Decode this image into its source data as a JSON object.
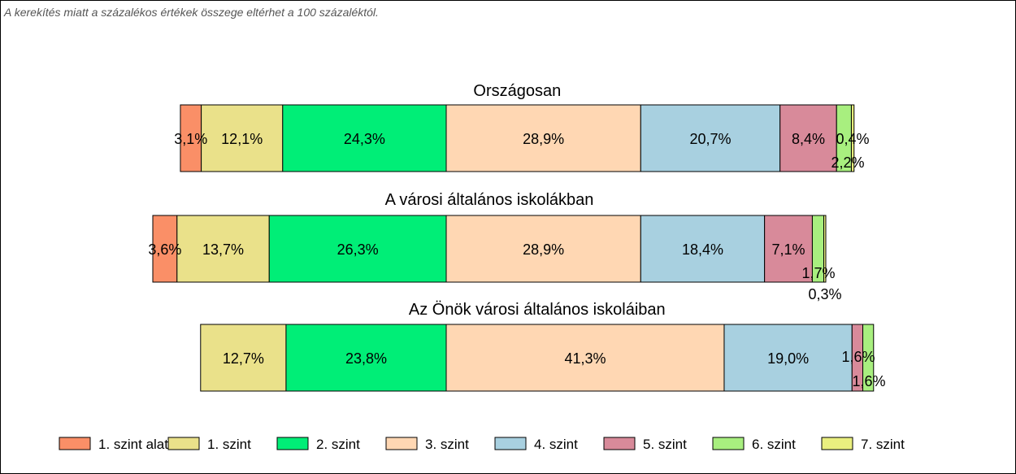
{
  "note": "A kerekítés miatt a  százalékos értékek összege eltérhet a 100 százaléktól.",
  "chart_data": {
    "type": "bar",
    "orientation": "horizontal",
    "stacked": true,
    "grid": false,
    "legend_position": "bottom",
    "series": [
      {
        "name": "1. szint alatti",
        "color": "#FA8F67"
      },
      {
        "name": "1. szint",
        "color": "#EAE18A"
      },
      {
        "name": "2. szint",
        "color": "#00EE77"
      },
      {
        "name": "3. szint",
        "color": "#FFD7B3"
      },
      {
        "name": "4. szint",
        "color": "#A8D0E0"
      },
      {
        "name": "5. szint",
        "color": "#D88A9A"
      },
      {
        "name": "6. szint",
        "color": "#A8EF7F"
      },
      {
        "name": "7. szint",
        "color": "#EAEF7F"
      }
    ],
    "groups": [
      {
        "title": "Országosan",
        "values": [
          3.1,
          12.1,
          24.3,
          28.9,
          20.7,
          8.4,
          2.2,
          0.4
        ],
        "labels": [
          "3,1%",
          "12,1%",
          "24,3%",
          "28,9%",
          "20,7%",
          "8,4%",
          "2,2%",
          "0,4%"
        ]
      },
      {
        "title": "A városi általános iskolákban",
        "values": [
          3.6,
          13.7,
          26.3,
          28.9,
          18.4,
          7.1,
          1.7,
          0.3
        ],
        "labels": [
          "3,6%",
          "13,7%",
          "26,3%",
          "28,9%",
          "18,4%",
          "7,1%",
          "1,7%",
          "0,3%"
        ]
      },
      {
        "title": "Az Önök városi általános iskoláiban",
        "values": [
          0,
          12.7,
          23.8,
          41.3,
          19.0,
          1.6,
          1.6,
          0
        ],
        "labels": [
          "",
          "12,7%",
          "23,8%",
          "41,3%",
          "19,0%",
          "1,6%",
          "1,6%",
          ""
        ]
      }
    ]
  }
}
